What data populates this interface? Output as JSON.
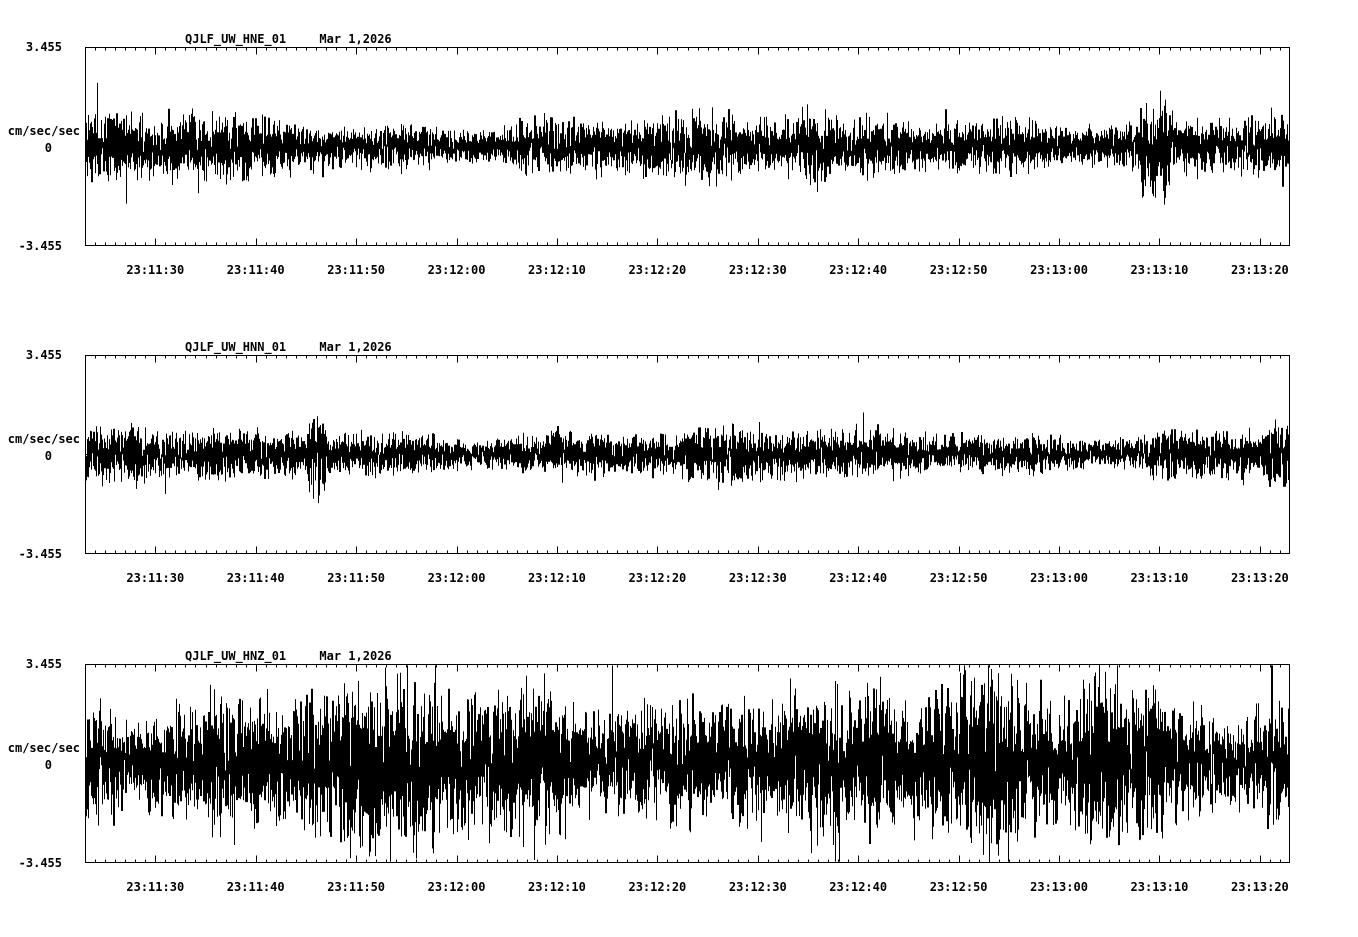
{
  "page": {
    "background": "#ffffff",
    "text_color": "#000000",
    "trace_color": "#000000"
  },
  "chart_data": [
    {
      "type": "line",
      "subtype": "seismogram-trace",
      "title": "QJLF_UW_HNE_01",
      "date": "Mar 1,2026",
      "ylabel": "cm/sec/sec",
      "ylim": [
        -3.455,
        3.455
      ],
      "ytick_labels": [
        "3.455",
        "0",
        "-3.455"
      ],
      "x_range_seconds": [
        83483,
        83603
      ],
      "x_major_tick_seconds": 10,
      "x_minor_tick_seconds": 1,
      "xtick_labels": [
        "23:11:30",
        "23:11:40",
        "23:11:50",
        "23:12:00",
        "23:12:10",
        "23:12:20",
        "23:12:30",
        "23:12:40",
        "23:12:50",
        "23:13:00",
        "23:13:10",
        "23:13:20"
      ],
      "grid": false,
      "line_color": "#000000",
      "waveform": {
        "description": "continuous ambient seismic noise centered on 0",
        "seed": 7,
        "base_amplitude": 0.42,
        "typical_peak": 0.7,
        "max_peak": 1.4,
        "spike_probability": 0.004,
        "spike_gain_min": 1.5,
        "spike_gain_max": 2.5,
        "bursts": [
          {
            "t": 71,
            "duration": 3,
            "gain": 1.5
          },
          {
            "t": 105,
            "duration": 3,
            "gain": 1.8
          }
        ]
      }
    },
    {
      "type": "line",
      "subtype": "seismogram-trace",
      "title": "QJLF_UW_HNN_01",
      "date": "Mar 1,2026",
      "ylabel": "cm/sec/sec",
      "ylim": [
        -3.455,
        3.455
      ],
      "ytick_labels": [
        "3.455",
        "0",
        "-3.455"
      ],
      "x_range_seconds": [
        83483,
        83603
      ],
      "x_major_tick_seconds": 10,
      "x_minor_tick_seconds": 1,
      "xtick_labels": [
        "23:11:30",
        "23:11:40",
        "23:11:50",
        "23:12:00",
        "23:12:10",
        "23:12:20",
        "23:12:30",
        "23:12:40",
        "23:12:50",
        "23:13:00",
        "23:13:10",
        "23:13:20"
      ],
      "grid": false,
      "line_color": "#000000",
      "waveform": {
        "description": "continuous ambient seismic noise centered on 0",
        "seed": 13,
        "base_amplitude": 0.34,
        "typical_peak": 0.55,
        "max_peak": 1.0,
        "spike_probability": 0.004,
        "spike_gain_min": 1.4,
        "spike_gain_max": 2.2,
        "bursts": [
          {
            "t": 22,
            "duration": 2,
            "gain": 1.7
          },
          {
            "t": 117,
            "duration": 3,
            "gain": 1.4
          }
        ]
      }
    },
    {
      "type": "line",
      "subtype": "seismogram-trace",
      "title": "QJLF_UW_HNZ_01",
      "date": "Mar 1,2026",
      "ylabel": "cm/sec/sec",
      "ylim": [
        -3.455,
        3.455
      ],
      "ytick_labels": [
        "3.455",
        "0",
        "-3.455"
      ],
      "x_range_seconds": [
        83483,
        83603
      ],
      "x_major_tick_seconds": 10,
      "x_minor_tick_seconds": 1,
      "xtick_labels": [
        "23:11:30",
        "23:11:40",
        "23:11:50",
        "23:12:00",
        "23:12:10",
        "23:12:20",
        "23:12:30",
        "23:12:40",
        "23:12:50",
        "23:13:00",
        "23:13:10",
        "23:13:20"
      ],
      "grid": false,
      "line_color": "#000000",
      "waveform": {
        "description": "continuous high-amplitude seismic noise centered on 0, frequent spikes approaching full scale",
        "seed": 42,
        "base_amplitude": 1.05,
        "typical_peak": 1.9,
        "max_peak": 3.4,
        "spike_probability": 0.008,
        "spike_gain_min": 1.3,
        "spike_gain_max": 2.2,
        "bursts": [
          {
            "t": 63,
            "duration": 8,
            "gain": 1.25
          },
          {
            "t": 99,
            "duration": 4,
            "gain": 1.35
          }
        ]
      }
    }
  ]
}
